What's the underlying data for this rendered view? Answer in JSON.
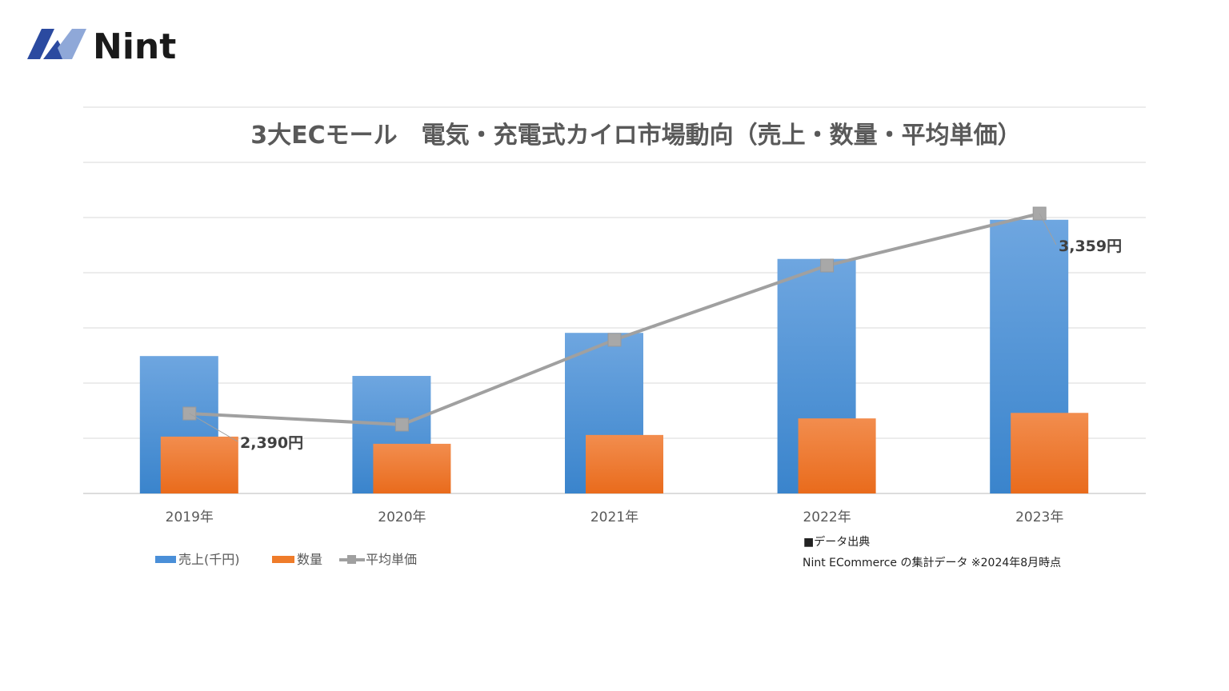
{
  "logo": {
    "text": "Nint",
    "colors": [
      "#2b4aa0",
      "#8fa8d8"
    ]
  },
  "source": {
    "heading": "■データ出典",
    "text": "Nint ECommerce の集計データ ※2024年8月時点"
  },
  "chart_data": {
    "type": "bar+line",
    "title": "3大ECモール　電気・充電式カイロ市場動向（売上・数量・平均単価）",
    "categories": [
      "2019年",
      "2020年",
      "2021年",
      "2022年",
      "2023年"
    ],
    "grid": true,
    "legend_position": "bottom-left",
    "primary_axis_note_units": "gridlines (axis not labeled)",
    "ylim": [
      0,
      6
    ],
    "series": [
      {
        "name": "売上(千円)",
        "type": "bar",
        "color": "#4a8fd8",
        "values": [
          2.49,
          2.13,
          2.91,
          4.25,
          4.96
        ]
      },
      {
        "name": "数量",
        "type": "bar",
        "color": "#ef7c2a",
        "values": [
          1.03,
          0.9,
          1.06,
          1.36,
          1.46
        ]
      },
      {
        "name": "平均単価",
        "type": "line",
        "color": "#a0a0a0",
        "values": [
          2390,
          2336,
          2747,
          3107,
          3359
        ],
        "data_labels": [
          "2,390円",
          null,
          null,
          null,
          "3,359円"
        ]
      }
    ]
  }
}
